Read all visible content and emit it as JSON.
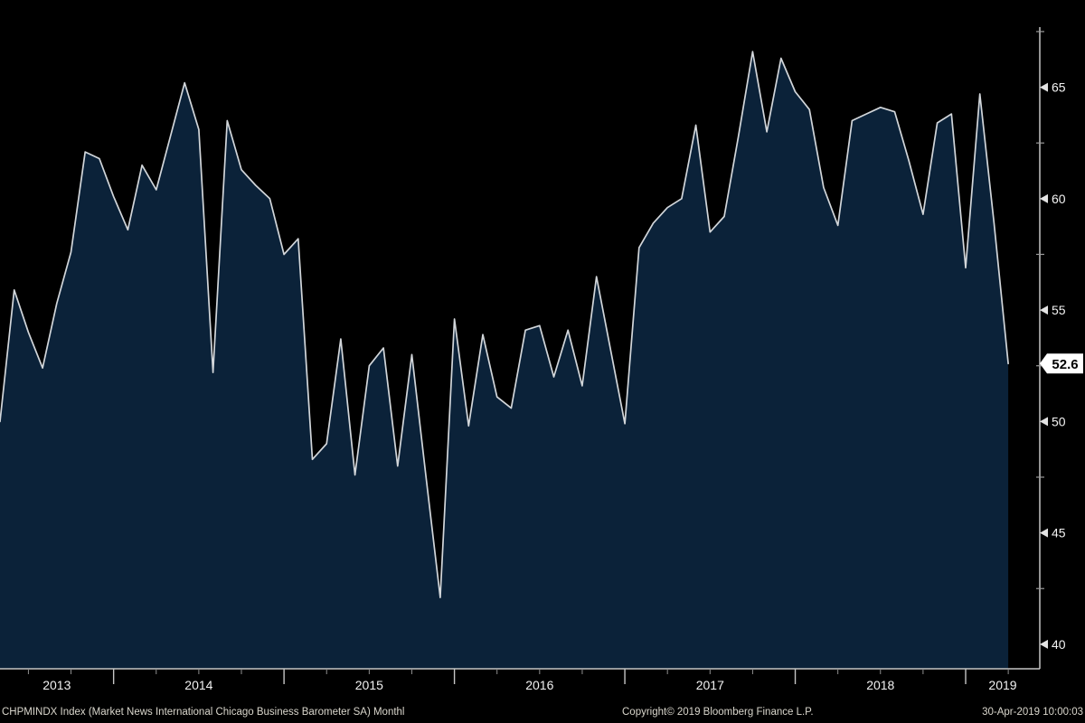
{
  "chart_data": {
    "type": "area",
    "series_name": "CHPMINDX Index (Market News International Chicago Business Barometer SA)",
    "frequency": "monthly",
    "start_month": "2013-05",
    "end_month": "2019-04",
    "values": [
      50.0,
      55.9,
      54.0,
      52.4,
      55.3,
      57.6,
      62.1,
      61.8,
      60.1,
      58.6,
      61.5,
      60.4,
      62.8,
      65.2,
      63.1,
      52.2,
      63.5,
      61.3,
      60.6,
      60.0,
      57.5,
      58.2,
      48.3,
      49.0,
      53.7,
      47.6,
      52.5,
      53.3,
      48.0,
      53.0,
      47.5,
      42.1,
      54.6,
      49.8,
      53.9,
      51.1,
      50.6,
      54.1,
      54.3,
      52.0,
      54.1,
      51.6,
      56.5,
      53.2,
      49.9,
      57.8,
      58.9,
      59.6,
      60.0,
      63.3,
      58.5,
      59.2,
      62.8,
      66.6,
      63.0,
      66.3,
      64.8,
      64.0,
      60.5,
      58.8,
      63.5,
      63.8,
      64.1,
      63.9,
      61.7,
      59.3,
      63.4,
      63.8,
      56.9,
      64.7,
      58.9,
      52.6
    ],
    "last_value": 52.6,
    "last_value_label": "52.6",
    "x_labels": [
      "2013",
      "2014",
      "2015",
      "2016",
      "2017",
      "2018",
      "2019"
    ],
    "y_ticks_major": [
      40,
      45,
      50,
      55,
      60,
      65
    ],
    "y_ticks_minor": [
      42.5,
      47.5,
      52.5,
      57.5,
      62.5,
      67.5
    ],
    "ylim": [
      38.9,
      67.7
    ],
    "grid": "off",
    "legend": "none"
  },
  "footer": {
    "left_text": "CHPMINDX Index (Market News International Chicago Business Barometer SA)  Monthl",
    "copyright_text": "Copyright© 2019 Bloomberg Finance L.P.",
    "timestamp_text": "30-Apr-2019 10:00:03"
  },
  "colors": {
    "background": "#000000",
    "area_fill": "#0b2239",
    "line": "#d2d6da",
    "axis": "#c6c6c6",
    "tick": "#c6c6c6",
    "axis_label": "#f2f2f2",
    "footer_text": "#d9d6cc",
    "tag_background": "#ffffff",
    "tag_text": "#000000"
  }
}
